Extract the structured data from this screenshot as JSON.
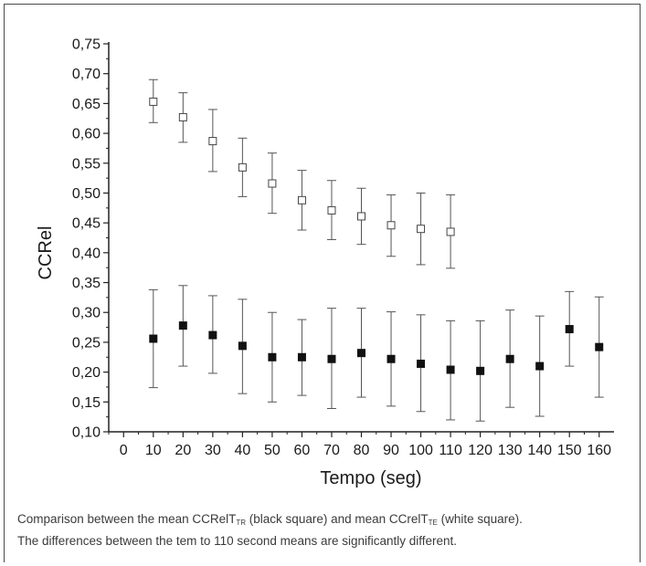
{
  "caption": {
    "part1": "Comparison between the mean CCRelT",
    "sub1": "TR",
    "part2": " (black square) and mean CCrelT",
    "sub2": "TE",
    "part3": " (white square).",
    "line2": "The differences between the tem to 110 second means are significantly different."
  },
  "chart_data": {
    "type": "scatter",
    "xlabel": "Tempo (seg)",
    "ylabel": "CCRel",
    "xlim": [
      -5,
      165
    ],
    "ylim": [
      0.1,
      0.75
    ],
    "x_ticks": [
      "0",
      "10",
      "20",
      "30",
      "40",
      "50",
      "60",
      "70",
      "80",
      "90",
      "100",
      "110",
      "120",
      "130",
      "140",
      "150",
      "160"
    ],
    "y_ticks": [
      "0,10",
      "0,15",
      "0,20",
      "0,25",
      "0,30",
      "0,35",
      "0,40",
      "0,45",
      "0,50",
      "0,55",
      "0,60",
      "0,65",
      "0,70",
      "0,75"
    ],
    "series": [
      {
        "marker": "open-square",
        "color": "#ffffff",
        "x": [
          10,
          20,
          30,
          40,
          50,
          60,
          70,
          80,
          90,
          100,
          110
        ],
        "y": [
          0.653,
          0.627,
          0.587,
          0.543,
          0.516,
          0.488,
          0.471,
          0.461,
          0.446,
          0.44,
          0.435
        ],
        "err_low": [
          0.618,
          0.585,
          0.536,
          0.494,
          0.466,
          0.438,
          0.422,
          0.414,
          0.394,
          0.38,
          0.374
        ],
        "err_high": [
          0.69,
          0.668,
          0.64,
          0.592,
          0.567,
          0.538,
          0.521,
          0.508,
          0.497,
          0.5,
          0.497
        ]
      },
      {
        "marker": "filled-square",
        "color": "#111111",
        "x": [
          10,
          20,
          30,
          40,
          50,
          60,
          70,
          80,
          90,
          100,
          110,
          120,
          130,
          140,
          150,
          160
        ],
        "y": [
          0.256,
          0.278,
          0.262,
          0.244,
          0.225,
          0.225,
          0.222,
          0.232,
          0.222,
          0.214,
          0.204,
          0.202,
          0.222,
          0.21,
          0.272,
          0.242
        ],
        "err_low": [
          0.174,
          0.21,
          0.198,
          0.164,
          0.15,
          0.161,
          0.139,
          0.158,
          0.143,
          0.134,
          0.12,
          0.118,
          0.141,
          0.126,
          0.21,
          0.158
        ],
        "err_high": [
          0.338,
          0.345,
          0.328,
          0.322,
          0.3,
          0.288,
          0.307,
          0.307,
          0.301,
          0.296,
          0.286,
          0.286,
          0.304,
          0.294,
          0.335,
          0.326
        ]
      }
    ]
  }
}
